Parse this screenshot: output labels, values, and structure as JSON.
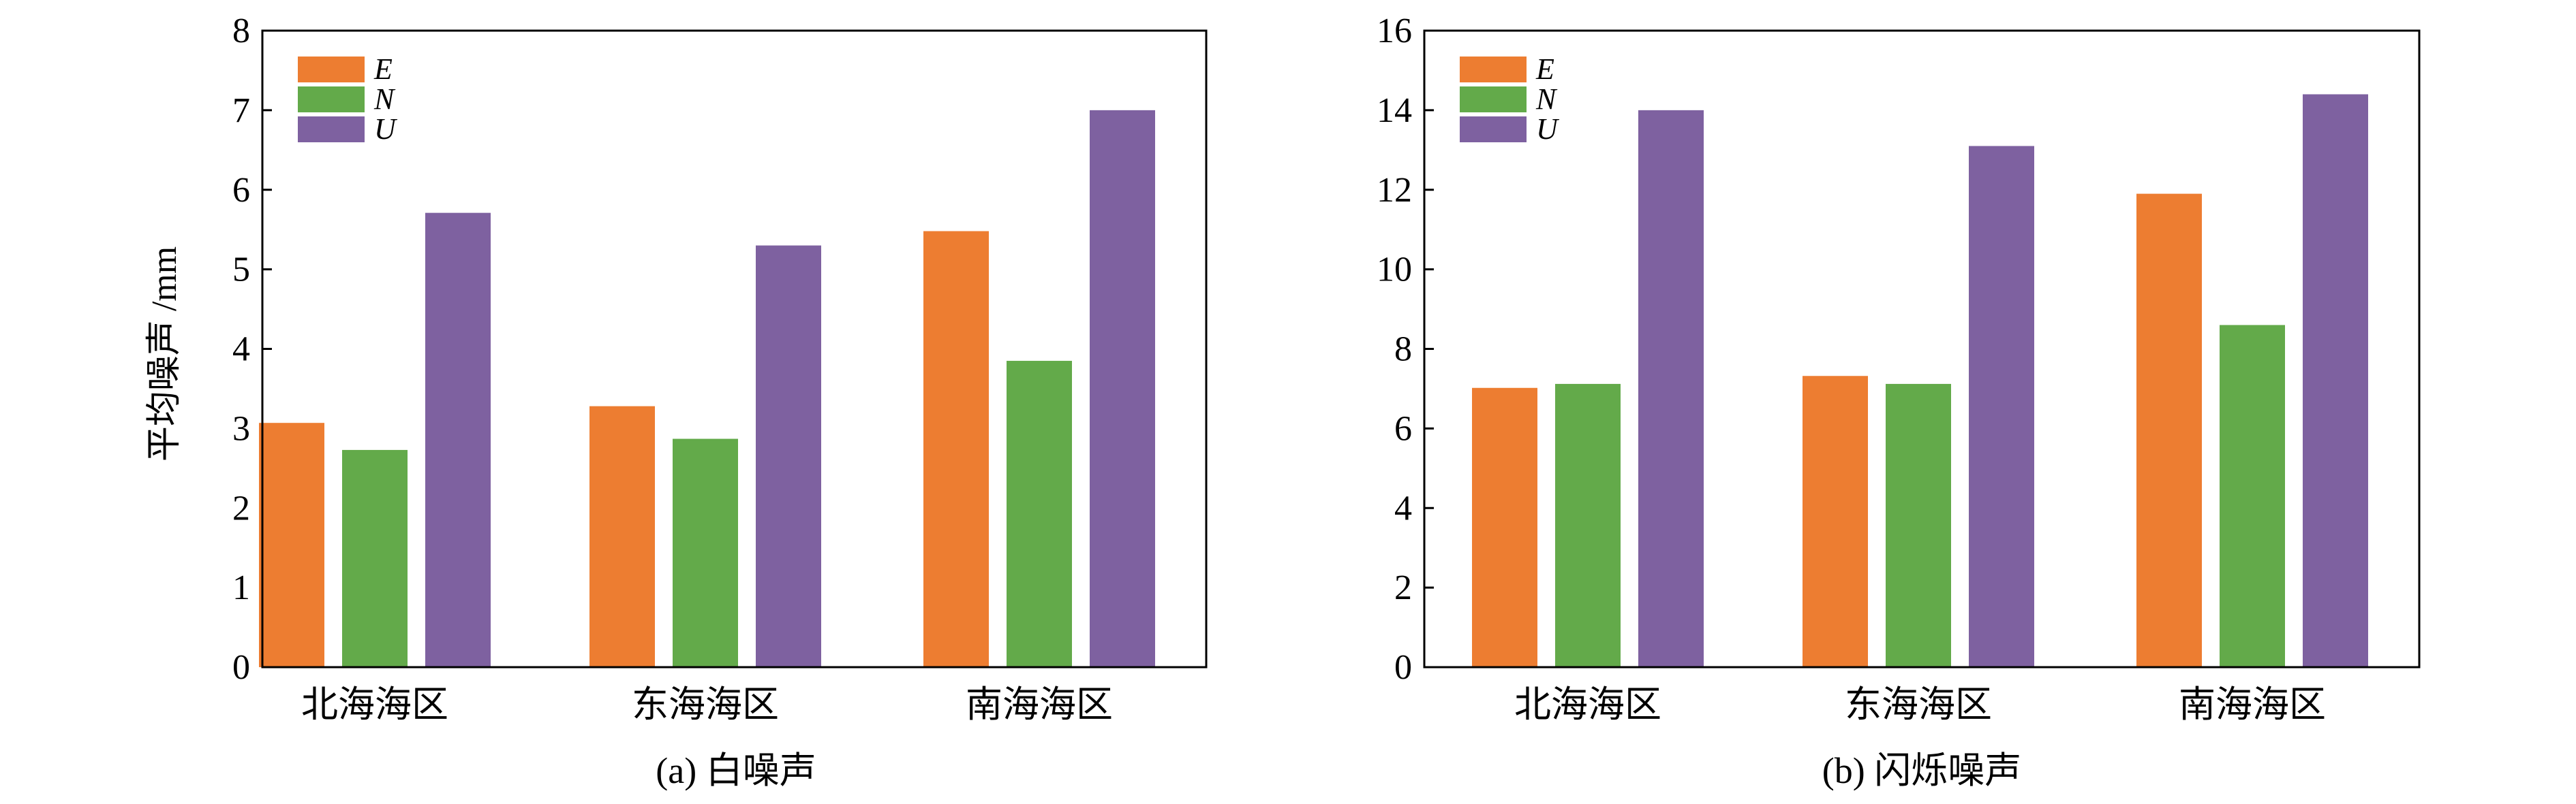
{
  "colors": {
    "E": "#ED7D31",
    "N": "#63AA4A",
    "U": "#7E61A0"
  },
  "chart_data": [
    {
      "type": "bar",
      "categories": [
        "北海海区",
        "东海海区",
        "南海海区"
      ],
      "series": [
        {
          "name": "E",
          "values": [
            3.07,
            3.28,
            5.48
          ]
        },
        {
          "name": "N",
          "values": [
            2.73,
            2.87,
            3.85
          ]
        },
        {
          "name": "U",
          "values": [
            5.71,
            5.3,
            7.0
          ]
        }
      ],
      "ylim": [
        0,
        8
      ],
      "yticks": [
        0,
        1,
        2,
        3,
        4,
        5,
        6,
        7,
        8
      ],
      "ylabel": "平均噪声 /mm",
      "xlabel": "",
      "caption": "(a) 白噪声",
      "legend_position": "top-left",
      "grid": false
    },
    {
      "type": "bar",
      "categories": [
        "北海海区",
        "东海海区",
        "南海海区"
      ],
      "series": [
        {
          "name": "E",
          "values": [
            7.02,
            7.32,
            11.9
          ]
        },
        {
          "name": "N",
          "values": [
            7.12,
            7.12,
            8.6
          ]
        },
        {
          "name": "U",
          "values": [
            14.0,
            13.1,
            14.4
          ]
        }
      ],
      "ylim": [
        0,
        16
      ],
      "yticks": [
        0,
        2,
        4,
        6,
        8,
        10,
        12,
        14,
        16
      ],
      "ylabel": "",
      "xlabel": "",
      "caption": "(b) 闪烁噪声",
      "legend_position": "top-left",
      "grid": false
    }
  ]
}
